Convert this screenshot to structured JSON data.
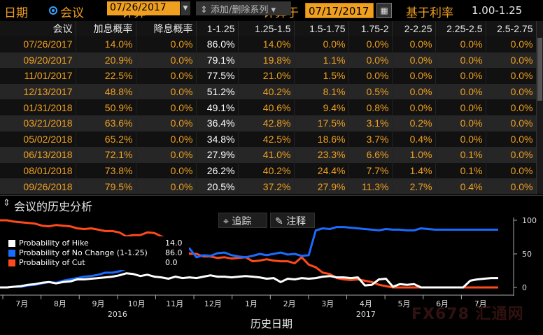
{
  "topbar": {
    "dates_label": "日期",
    "meeting_label": "会议",
    "calculate_label": "计算",
    "calc_at_label": "计算于",
    "calc_date": "07/17/2017",
    "base_rate_label": "基于利率",
    "base_rate_value": "1.00-1.25"
  },
  "table": {
    "headers": [
      "会议",
      "加息概率",
      "降息概率",
      "1-1.25",
      "1.25-1.5",
      "1.5-1.75",
      "1.75-2",
      "2-2.25",
      "2.25-2.5",
      "2.5-2.75"
    ],
    "rows": [
      [
        "07/26/2017",
        "14.0%",
        "0.0%",
        "86.0%",
        "14.0%",
        "0.0%",
        "0.0%",
        "0.0%",
        "0.0%",
        "0.0%"
      ],
      [
        "09/20/2017",
        "20.9%",
        "0.0%",
        "79.1%",
        "19.8%",
        "1.1%",
        "0.0%",
        "0.0%",
        "0.0%",
        "0.0%"
      ],
      [
        "11/01/2017",
        "22.5%",
        "0.0%",
        "77.5%",
        "21.0%",
        "1.5%",
        "0.0%",
        "0.0%",
        "0.0%",
        "0.0%"
      ],
      [
        "12/13/2017",
        "48.8%",
        "0.0%",
        "51.2%",
        "40.2%",
        "8.1%",
        "0.5%",
        "0.0%",
        "0.0%",
        "0.0%"
      ],
      [
        "01/31/2018",
        "50.9%",
        "0.0%",
        "49.1%",
        "40.6%",
        "9.4%",
        "0.8%",
        "0.0%",
        "0.0%",
        "0.0%"
      ],
      [
        "03/21/2018",
        "63.6%",
        "0.0%",
        "36.4%",
        "42.8%",
        "17.5%",
        "3.1%",
        "0.2%",
        "0.0%",
        "0.0%"
      ],
      [
        "05/02/2018",
        "65.2%",
        "0.0%",
        "34.8%",
        "42.5%",
        "18.6%",
        "3.7%",
        "0.4%",
        "0.0%",
        "0.0%"
      ],
      [
        "06/13/2018",
        "72.1%",
        "0.0%",
        "27.9%",
        "41.0%",
        "23.3%",
        "6.6%",
        "1.0%",
        "0.1%",
        "0.0%"
      ],
      [
        "08/01/2018",
        "73.8%",
        "0.0%",
        "26.2%",
        "40.2%",
        "24.4%",
        "7.7%",
        "1.4%",
        "0.1%",
        "0.0%"
      ],
      [
        "09/26/2018",
        "79.5%",
        "0.0%",
        "20.5%",
        "37.2%",
        "27.9%",
        "11.3%",
        "2.7%",
        "0.4%",
        "0.0%"
      ]
    ]
  },
  "panel": {
    "collapse_glyph": "⇕",
    "title": "会议的历史分析",
    "date": "07/26/2017",
    "series_button": "添加/删除系列",
    "track_button": "追踪",
    "annotate_button": "注释"
  },
  "legend": [
    {
      "label": "Probability of Hike",
      "value": "14.0",
      "color": "#ffffff"
    },
    {
      "label": "Probability of No Change (1-1.25)",
      "value": "86.0",
      "color": "#1a6cff"
    },
    {
      "label": "Probability of Cut",
      "value": "0.0",
      "color": "#ff4a1a"
    }
  ],
  "chart_data": {
    "type": "line",
    "x_ticks": [
      "7月",
      "8月",
      "9月",
      "10月",
      "11月",
      "12月",
      "1月",
      "2月",
      "3月",
      "4月",
      "5月",
      "6月",
      "7月"
    ],
    "year_labels": [
      {
        "text": "2016",
        "tick_index": 2.5
      },
      {
        "text": "2017",
        "tick_index": 9
      }
    ],
    "y_ticks": [
      "0",
      "50",
      "100"
    ],
    "ylim": [
      0,
      100
    ],
    "xlabel": "历史日期",
    "series": [
      {
        "name": "Probability of Hike",
        "color": "#ffffff",
        "values": [
          0,
          0,
          1,
          2,
          4,
          5,
          7,
          8,
          6,
          8,
          9,
          12,
          12,
          13,
          14,
          15,
          16,
          18,
          21,
          20,
          17,
          19,
          16,
          15,
          13,
          16,
          14,
          15,
          14,
          16,
          18,
          16,
          16,
          15,
          16,
          17,
          16,
          15,
          13,
          14,
          8,
          13,
          12,
          14,
          13,
          14,
          16,
          17,
          15,
          15,
          14,
          15,
          3,
          4,
          12,
          13,
          1,
          5,
          4,
          5,
          0,
          0,
          0,
          0,
          0,
          0,
          0,
          10,
          12,
          13,
          14,
          14
        ]
      },
      {
        "name": "Probability of No Change (1-1.25)",
        "color": "#1a6cff",
        "values": [
          0,
          0,
          1,
          1,
          3,
          4,
          6,
          8,
          7,
          10,
          12,
          14,
          16,
          17,
          19,
          22,
          22,
          24,
          28,
          30,
          30,
          36,
          36,
          40,
          44,
          55,
          57,
          58,
          45,
          48,
          47,
          51,
          52,
          48,
          46,
          45,
          47,
          50,
          48,
          50,
          52,
          49,
          50,
          47,
          48,
          85,
          88,
          87,
          90,
          90,
          89,
          88,
          87,
          86,
          85,
          87,
          86,
          86,
          85,
          85,
          88,
          87,
          86,
          86,
          86,
          86,
          86,
          86,
          86,
          86,
          86,
          86
        ]
      },
      {
        "name": "Probability of Cut",
        "color": "#ff4a1a",
        "values": [
          100,
          100,
          98,
          97,
          96,
          95,
          92,
          91,
          93,
          92,
          91,
          88,
          87,
          88,
          86,
          84,
          84,
          82,
          76,
          78,
          78,
          82,
          81,
          76,
          72,
          62,
          63,
          50,
          50,
          46,
          46,
          44,
          45,
          43,
          44,
          45,
          39,
          40,
          42,
          40,
          39,
          39,
          36,
          45,
          34,
          30,
          22,
          20,
          14,
          12,
          11,
          12,
          10,
          8,
          4,
          2,
          0,
          0,
          0,
          0,
          0,
          0,
          0,
          0,
          0,
          0,
          0,
          0,
          0,
          0,
          0,
          0
        ]
      }
    ]
  },
  "watermark": "FX678 汇通网"
}
